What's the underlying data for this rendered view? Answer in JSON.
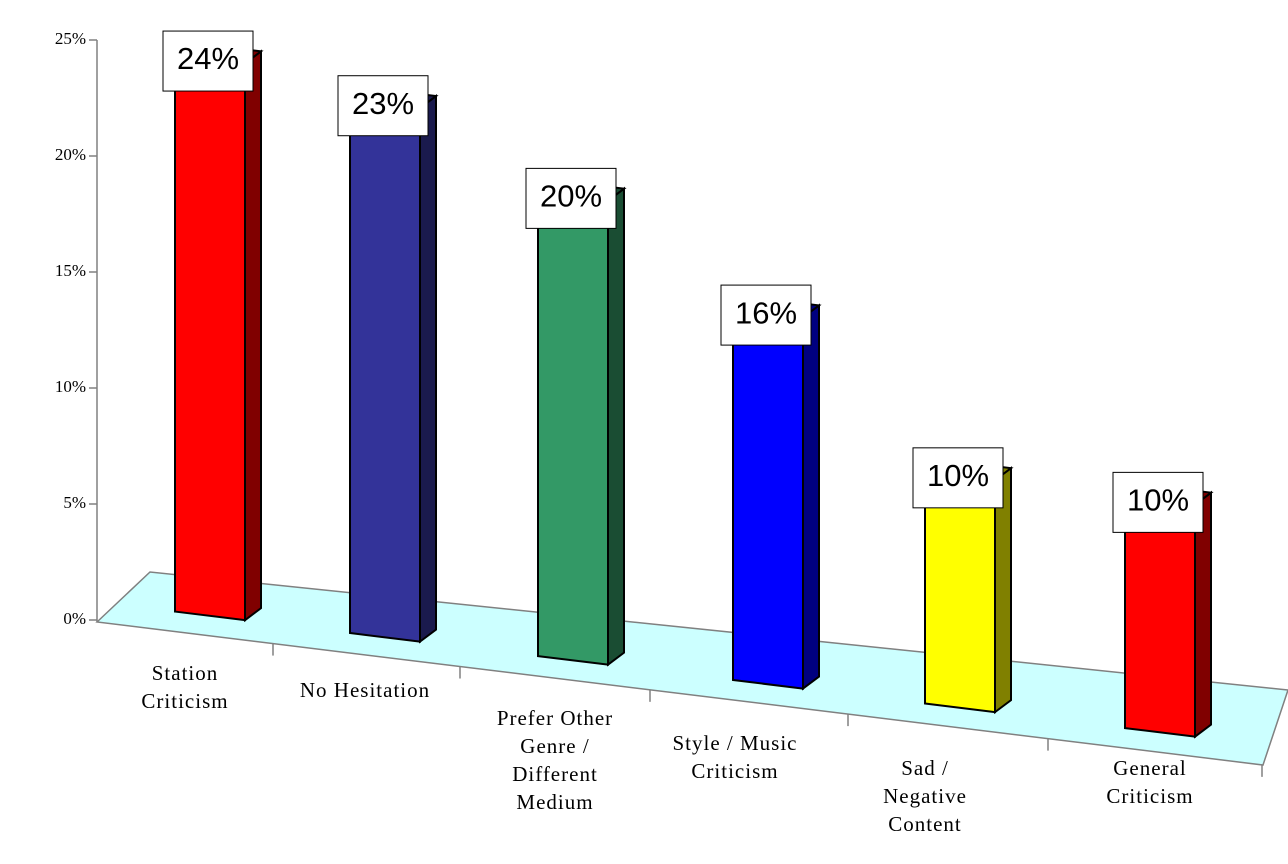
{
  "chart_data": {
    "type": "bar3d",
    "categories": [
      [
        "Station",
        "Criticism"
      ],
      [
        "No Hesitation"
      ],
      [
        "Prefer Other",
        "Genre /",
        "Different",
        "Medium"
      ],
      [
        "Style / Music",
        "Criticism"
      ],
      [
        "Sad /",
        "Negative",
        "Content"
      ],
      [
        "General",
        "Criticism"
      ]
    ],
    "values": [
      24,
      23,
      20,
      16,
      10,
      10
    ],
    "value_labels": [
      "24%",
      "23%",
      "20%",
      "16%",
      "10%",
      "10%"
    ],
    "colors": [
      "#ff0000",
      "#333399",
      "#339966",
      "#0000ff",
      "#ffff00",
      "#ff0000"
    ],
    "ylim": [
      0,
      25
    ],
    "yticks": [
      {
        "value": 0,
        "label": "0%"
      },
      {
        "value": 5,
        "label": "5%"
      },
      {
        "value": 10,
        "label": "10%"
      },
      {
        "value": 15,
        "label": "15%"
      },
      {
        "value": 20,
        "label": "20%"
      },
      {
        "value": 25,
        "label": "25%"
      }
    ],
    "grid": false
  }
}
